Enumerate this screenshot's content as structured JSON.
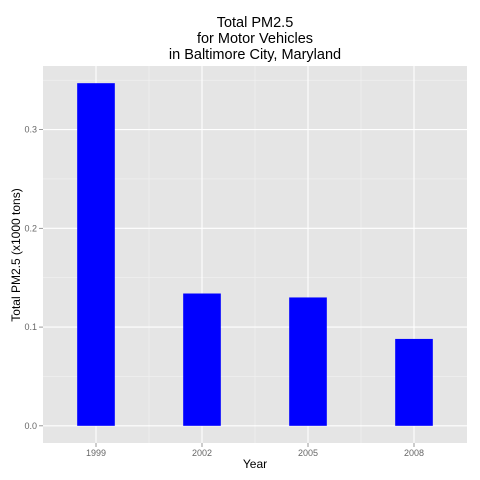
{
  "chart_data": {
    "type": "bar",
    "title": [
      "Total PM2.5",
      "for Motor Vehicles",
      "in Baltimore City, Maryland"
    ],
    "xlabel": "Year",
    "ylabel": "Total PM2.5 (x1000 tons)",
    "categories": [
      "1999",
      "2002",
      "2005",
      "2008"
    ],
    "values": [
      0.347,
      0.134,
      0.13,
      0.088
    ],
    "ylim": [
      -0.0174,
      0.3644
    ],
    "yticks": [
      0.0,
      0.1,
      0.2,
      0.3
    ],
    "ytick_labels": [
      "0.0",
      "0.1",
      "0.2",
      "0.3"
    ],
    "grid": true,
    "colors": {
      "bar": "#0000ff",
      "panel_bg": "#e5e5e5",
      "grid_major": "#ffffff",
      "grid_minor": "#f2f2f2",
      "tick_text": "#666666"
    }
  }
}
